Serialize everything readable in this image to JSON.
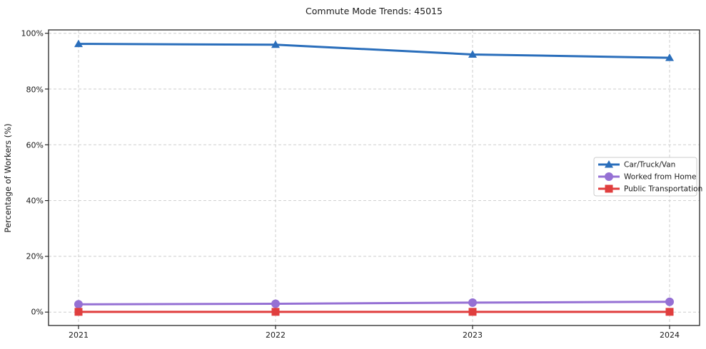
{
  "chart_data": {
    "type": "line",
    "title": "Commute Mode Trends: 45015",
    "xlabel": "",
    "ylabel": "Percentage of Workers (%)",
    "x": [
      2021,
      2022,
      2023,
      2024
    ],
    "xtick_labels": [
      "2021",
      "2022",
      "2023",
      "2024"
    ],
    "yticks": [
      0,
      20,
      40,
      60,
      80,
      100
    ],
    "ytick_labels": [
      "0%",
      "20%",
      "40%",
      "60%",
      "80%",
      "100%"
    ],
    "ylim": [
      -4.8,
      101.2
    ],
    "grid": true,
    "grid_style": "dashed",
    "legend_position": "center right",
    "series": [
      {
        "name": "Car/Truck/Van",
        "color": "#2a6ebb",
        "marker": "triangle",
        "values": [
          96.2,
          95.9,
          92.4,
          91.2
        ]
      },
      {
        "name": "Worked from Home",
        "color": "#9570d4",
        "marker": "circle",
        "values": [
          2.8,
          3.0,
          3.4,
          3.7
        ]
      },
      {
        "name": "Public Transportation",
        "color": "#e03e3e",
        "marker": "square",
        "values": [
          0.1,
          0.1,
          0.1,
          0.1
        ]
      }
    ],
    "colors": {
      "grid": "#cdcdcd",
      "spine": "#262626",
      "background": "#ffffff",
      "legend_border": "#cccccc"
    }
  }
}
